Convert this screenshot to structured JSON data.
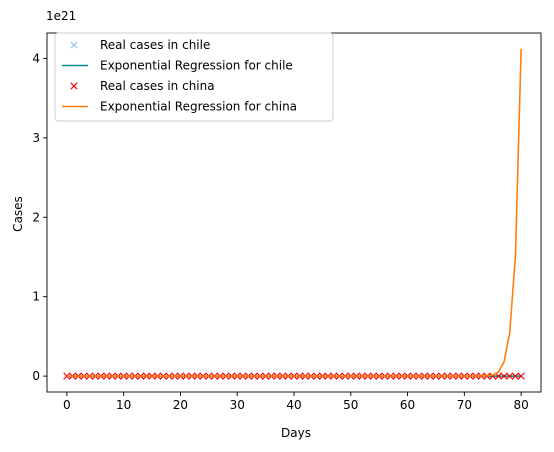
{
  "chart_data": {
    "type": "line",
    "xlabel": "Days",
    "ylabel": "Cases",
    "y_offset_text": "1e21",
    "y_scale": 1e+21,
    "xlim": [
      -3.5,
      83.5
    ],
    "ylim": [
      -0.2,
      4.32
    ],
    "x_ticks": [
      0,
      10,
      20,
      30,
      40,
      50,
      60,
      70,
      80
    ],
    "y_ticks": [
      0,
      1,
      2,
      3,
      4
    ],
    "grid": false,
    "legend_placement": "top-left",
    "series": [
      {
        "name": "Real cases in chile",
        "kind": "markers",
        "marker": "x",
        "color": "#87ceeb",
        "x": [
          0,
          1,
          2,
          3,
          4,
          5,
          6,
          7,
          8,
          9,
          10,
          11,
          12,
          13,
          14,
          15,
          16,
          17,
          18,
          19,
          20,
          21,
          22,
          23,
          24,
          25,
          26,
          27,
          28,
          29,
          30,
          31,
          32,
          33,
          34,
          35,
          36,
          37,
          38,
          39,
          40,
          41,
          42,
          43,
          44,
          45,
          46,
          47,
          48,
          49,
          50,
          51,
          52,
          53,
          54,
          55,
          56,
          57,
          58,
          59,
          60,
          61,
          62,
          63,
          64,
          65,
          66,
          67,
          68,
          69,
          70,
          71,
          72,
          73,
          74,
          75,
          76,
          77,
          78,
          79,
          80
        ],
        "y_all": 0
      },
      {
        "name": "Exponential Regression for chile",
        "kind": "line",
        "color": "#008b8b",
        "x": [
          0,
          80
        ],
        "y": [
          0,
          0
        ]
      },
      {
        "name": "Real cases in china",
        "kind": "markers",
        "marker": "x",
        "color": "#ff0000",
        "x": [
          0,
          1,
          2,
          3,
          4,
          5,
          6,
          7,
          8,
          9,
          10,
          11,
          12,
          13,
          14,
          15,
          16,
          17,
          18,
          19,
          20,
          21,
          22,
          23,
          24,
          25,
          26,
          27,
          28,
          29,
          30,
          31,
          32,
          33,
          34,
          35,
          36,
          37,
          38,
          39,
          40,
          41,
          42,
          43,
          44,
          45,
          46,
          47,
          48,
          49,
          50,
          51,
          52,
          53,
          54,
          55,
          56,
          57,
          58,
          59,
          60,
          61,
          62,
          63,
          64,
          65,
          66,
          67,
          68,
          69,
          70,
          71,
          72,
          73,
          74,
          75,
          76,
          77,
          78,
          79,
          80
        ],
        "y_all": 0
      },
      {
        "name": "Exponential Regression for china",
        "kind": "line",
        "color": "#ff7f0e",
        "x": [
          0,
          70,
          72,
          73,
          74,
          75,
          76,
          77,
          78,
          79,
          80
        ],
        "y": [
          0,
          0,
          0.001,
          0.002,
          0.005,
          0.015,
          0.05,
          0.18,
          0.55,
          1.52,
          4.12
        ]
      }
    ]
  }
}
